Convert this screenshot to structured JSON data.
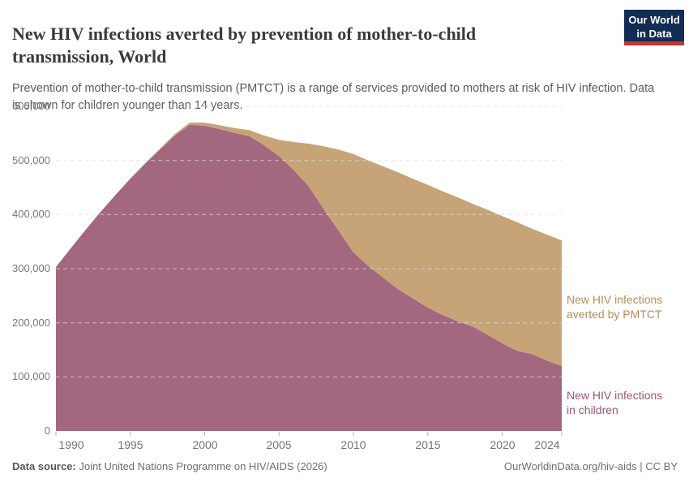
{
  "chart_data": {
    "type": "area",
    "stacked": true,
    "title": "New HIV infections averted by prevention of mother-to-child transmission, World",
    "subtitle": "Prevention of mother-to-child transmission (PMTCT) is a range of services provided to mothers at risk of HIV infection. Data is shown for children younger than 14 years.",
    "x": [
      1990,
      1991,
      1992,
      1993,
      1994,
      1995,
      1996,
      1997,
      1998,
      1999,
      2000,
      2001,
      2002,
      2003,
      2004,
      2005,
      2006,
      2007,
      2008,
      2009,
      2010,
      2011,
      2012,
      2013,
      2014,
      2015,
      2016,
      2017,
      2018,
      2019,
      2020,
      2021,
      2022,
      2023,
      2024
    ],
    "series": [
      {
        "name": "New HIV infections in children",
        "color": "#A3677F",
        "label_color": "#9C5476",
        "values": [
          303000,
          338000,
          372000,
          405000,
          436000,
          466000,
          494000,
          520000,
          546000,
          566000,
          564000,
          558000,
          551000,
          545000,
          528000,
          508000,
          482000,
          452000,
          410000,
          370000,
          330000,
          305000,
          283000,
          262000,
          245000,
          228000,
          214000,
          203000,
          193000,
          178000,
          162000,
          148000,
          142000,
          130000,
          120000
        ]
      },
      {
        "name": "New HIV infections averted by PMTCT",
        "color": "#C7A477",
        "label_color": "#B88C57",
        "values": [
          0,
          0,
          0,
          0,
          0,
          1000,
          1000,
          2000,
          3000,
          4000,
          6000,
          7000,
          9000,
          11000,
          18000,
          30000,
          52000,
          79000,
          116000,
          150000,
          182000,
          195000,
          206000,
          216000,
          221000,
          227000,
          229000,
          229000,
          227000,
          231000,
          235000,
          238000,
          232000,
          233000,
          232000
        ]
      }
    ],
    "ylim": [
      0,
      600000
    ],
    "yticks": [
      0,
      100000,
      200000,
      300000,
      400000,
      500000,
      600000
    ],
    "ytick_labels": [
      "0",
      "100,000",
      "200,000",
      "300,000",
      "400,000",
      "500,000",
      "600,000"
    ],
    "xticks": [
      1990,
      1995,
      2000,
      2005,
      2010,
      2015,
      2020,
      2024
    ],
    "grid": "dashed horizontal gridlines, drawn over areas",
    "legend_position": "right-annotations",
    "annotations": {
      "averted": {
        "text": "New HIV infections\naverted by PMTCT",
        "color": "#B88C57"
      },
      "children": {
        "text": "New HIV infections\nin children",
        "color": "#9C5476"
      }
    }
  },
  "logo": {
    "line1": "Our World",
    "line2": "in Data",
    "bg_color": "#132C54",
    "bar_color": "#bc3a33"
  },
  "footer": {
    "datasource_label": "Data source:",
    "datasource_value": "Joint United Nations Programme on HIV/AIDS (2026)",
    "attribution": "OurWorldinData.org/hiv-aids | CC BY"
  }
}
